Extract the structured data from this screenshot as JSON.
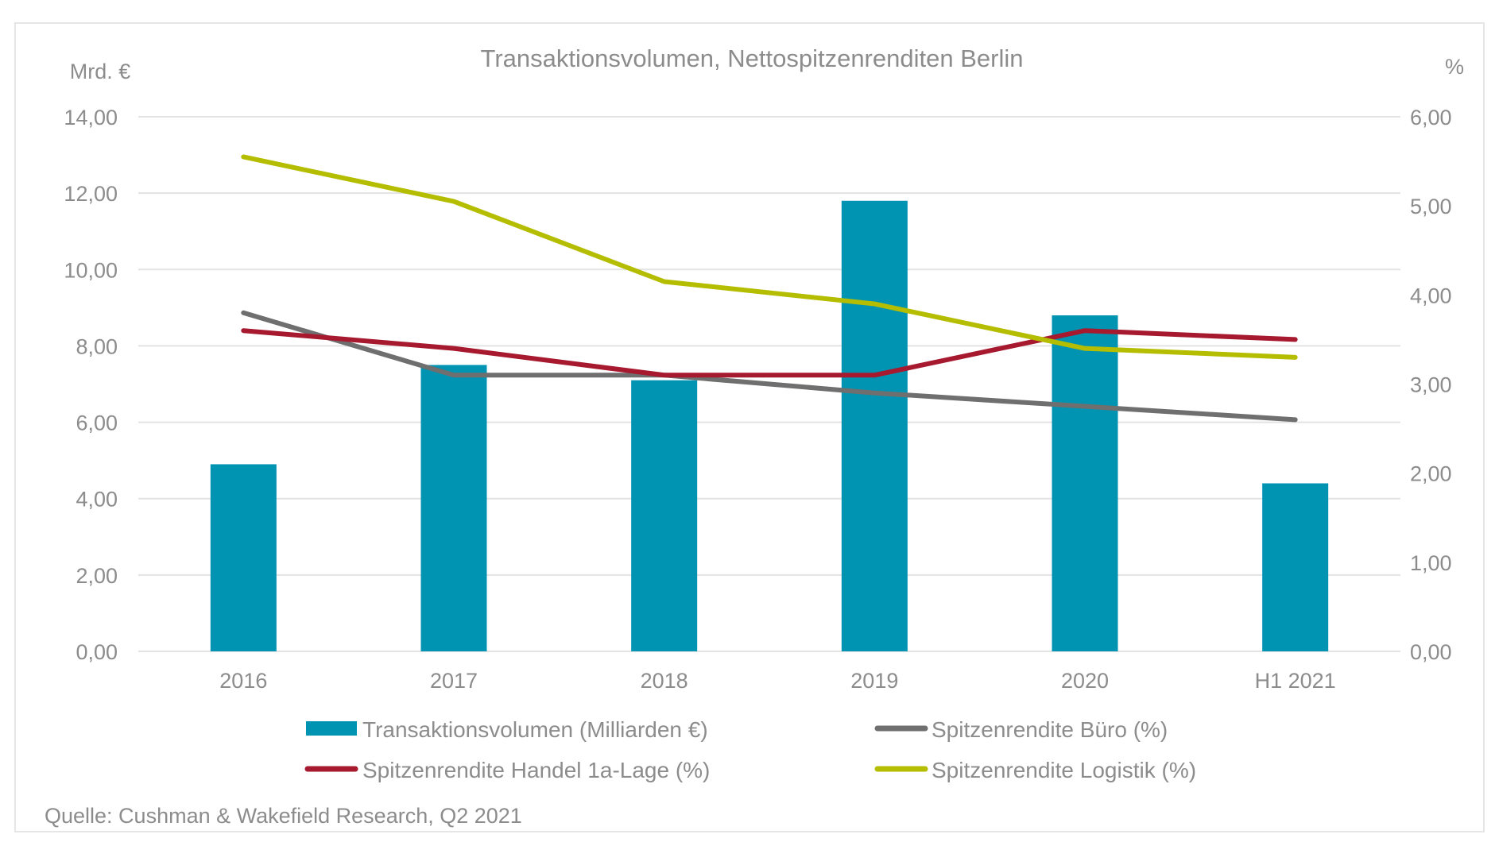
{
  "chart_data": {
    "type": "bar",
    "title": "Transaktionsvolumen, Nettospitzenrenditen Berlin",
    "categories": [
      "2016",
      "2017",
      "2018",
      "2019",
      "2020",
      "H1 2021"
    ],
    "y_left": {
      "label": "Mrd. €",
      "ylim": [
        0,
        14
      ],
      "ticks": [
        "0,00",
        "2,00",
        "4,00",
        "6,00",
        "8,00",
        "10,00",
        "12,00",
        "14,00"
      ],
      "tick_values": [
        0,
        2,
        4,
        6,
        8,
        10,
        12,
        14
      ]
    },
    "y_right": {
      "label": "%",
      "ylim": [
        0,
        6
      ],
      "ticks": [
        "0,00",
        "1,00",
        "2,00",
        "3,00",
        "4,00",
        "5,00",
        "6,00"
      ],
      "tick_values": [
        0,
        1,
        2,
        3,
        4,
        5,
        6
      ]
    },
    "grid": true,
    "legend_position": "bottom",
    "series": [
      {
        "name": "Transaktionsvolumen (Milliarden €)",
        "type": "bar",
        "axis": "left",
        "color": "#0093b2",
        "values": [
          4.9,
          7.5,
          7.1,
          11.8,
          8.8,
          4.4
        ]
      },
      {
        "name": "Spitzenrendite Büro (%)",
        "type": "line",
        "axis": "right",
        "color": "#6f6f6f",
        "values": [
          3.8,
          3.1,
          3.1,
          2.9,
          2.75,
          2.6
        ]
      },
      {
        "name": "Spitzenrendite Handel 1a-Lage (%)",
        "type": "line",
        "axis": "right",
        "color": "#a6192e",
        "values": [
          3.6,
          3.4,
          3.1,
          3.1,
          3.6,
          3.5
        ]
      },
      {
        "name": "Spitzenrendite Logistik  (%)",
        "type": "line",
        "axis": "right",
        "color": "#b5bd00",
        "values": [
          5.55,
          5.05,
          4.15,
          3.9,
          3.4,
          3.3
        ]
      }
    ],
    "source": "Quelle: Cushman & Wakefield Research, Q2 2021"
  }
}
